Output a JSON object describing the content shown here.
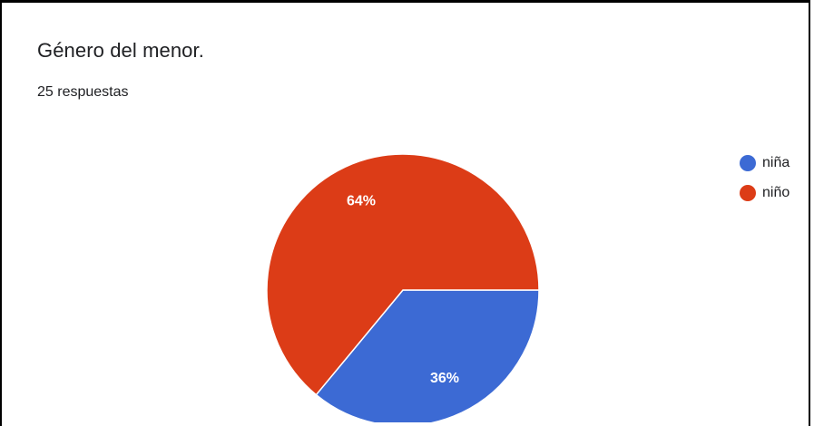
{
  "card": {
    "title": "Género del menor.",
    "responses": "25 respuestas"
  },
  "chart_data": {
    "type": "pie",
    "title": "Género del menor.",
    "categories": [
      "niña",
      "niño"
    ],
    "values": [
      36,
      64
    ],
    "labels": [
      "36%",
      "64%"
    ],
    "colors": [
      "#3c6ad4",
      "#dc3c17"
    ],
    "legend_position": "top-right"
  }
}
